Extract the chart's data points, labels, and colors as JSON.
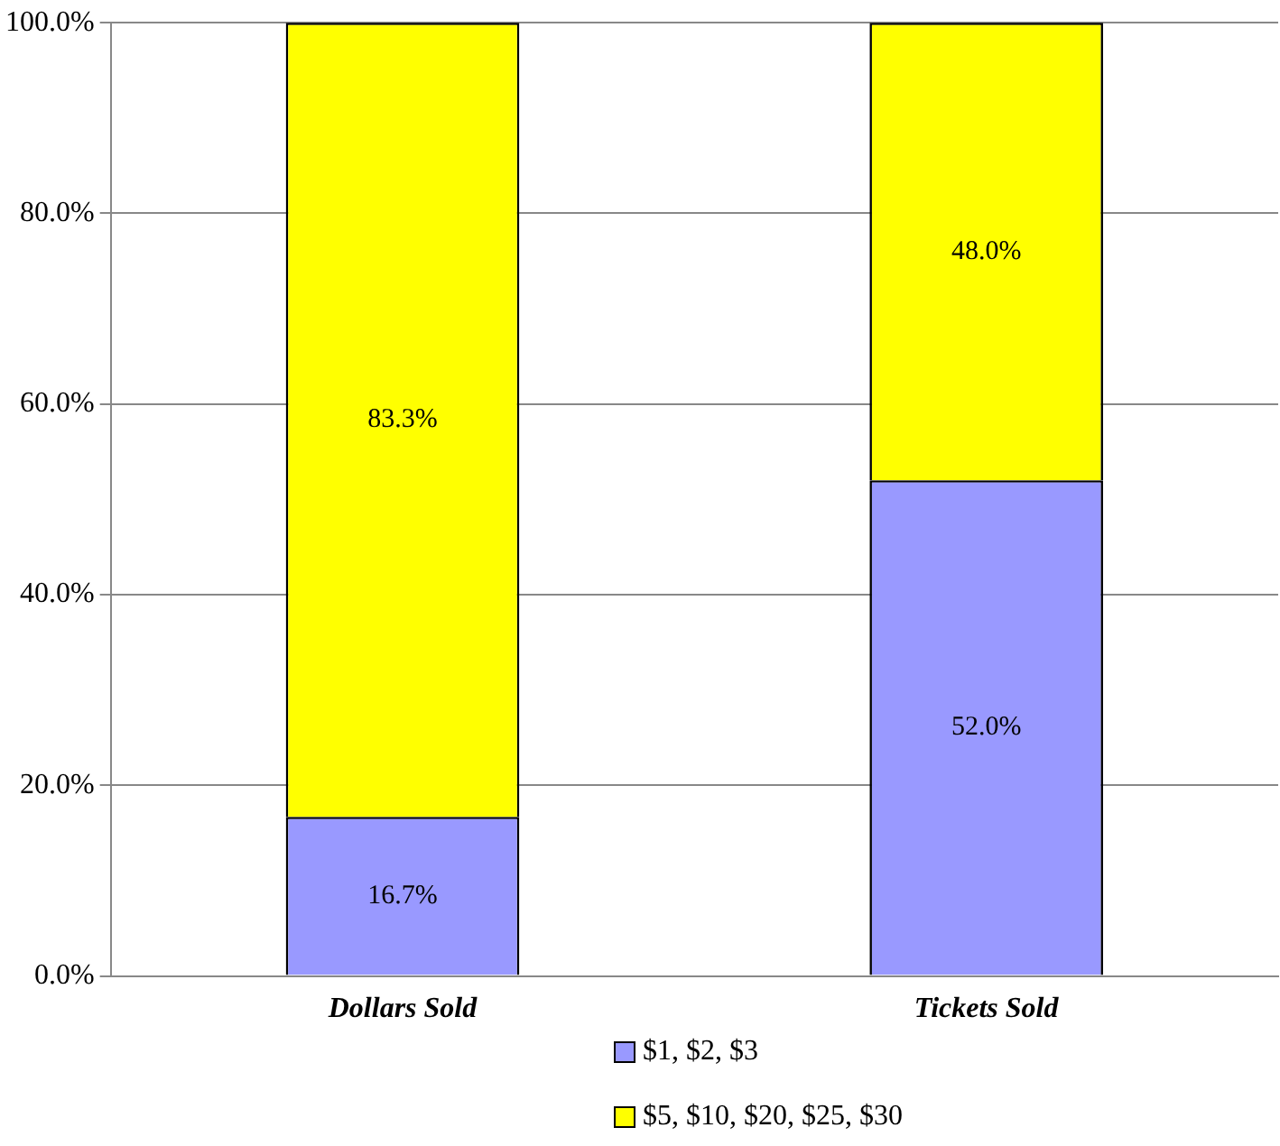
{
  "chart_data": {
    "type": "bar",
    "stacked": true,
    "categories": [
      "Dollars Sold",
      "Tickets Sold"
    ],
    "series": [
      {
        "name": "$1, $2, $3",
        "color": "#9999ff",
        "values": [
          16.7,
          52.0
        ],
        "value_labels": [
          "16.7%",
          "52.0%"
        ]
      },
      {
        "name": "$5, $10, $20, $25, $30",
        "color": "#ffff00",
        "values": [
          83.3,
          48.0
        ],
        "value_labels": [
          "83.3%",
          "48.0%"
        ]
      }
    ],
    "ylim": [
      0,
      100
    ],
    "yticks": [
      {
        "value": 0,
        "label": "0.0%"
      },
      {
        "value": 20,
        "label": "20.0%"
      },
      {
        "value": 40,
        "label": "40.0%"
      },
      {
        "value": 60,
        "label": "60.0%"
      },
      {
        "value": 80,
        "label": "80.0%"
      },
      {
        "value": 100,
        "label": "100.0%"
      }
    ],
    "grid": "y",
    "legend": "bottom"
  }
}
